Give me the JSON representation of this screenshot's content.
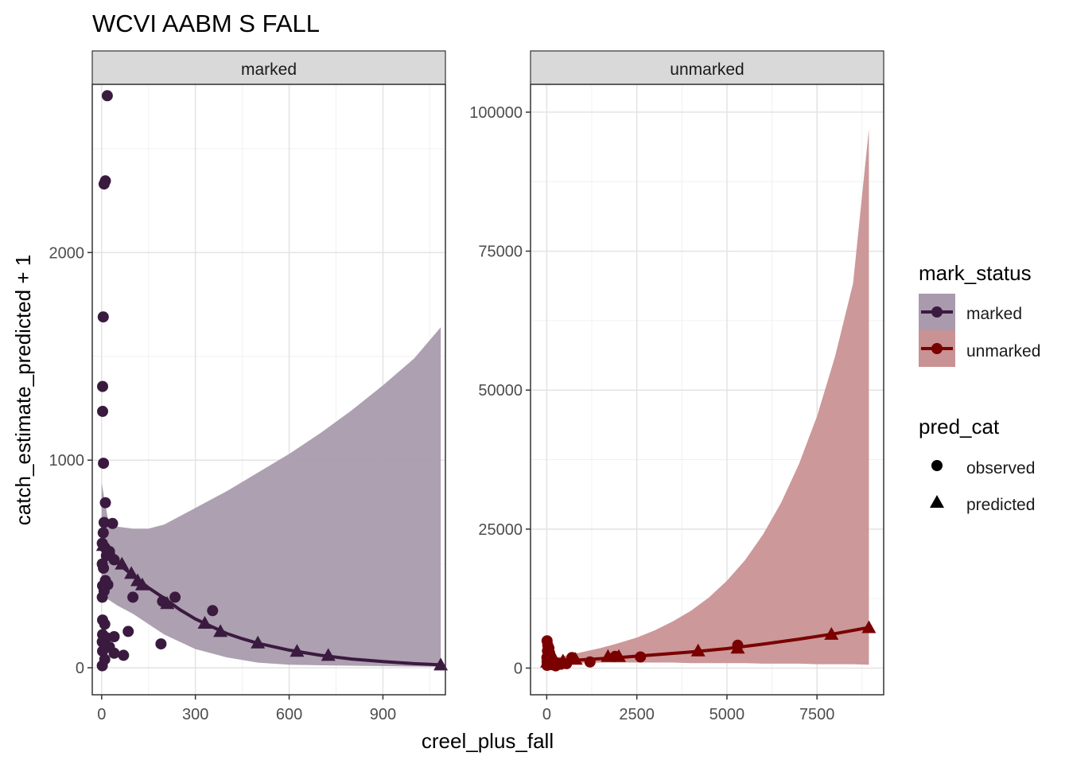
{
  "chart_data": {
    "type": "scatter",
    "title": "WCVI AABM S FALL",
    "xlabel": "creel_plus_fall",
    "ylabel": "catch_estimate_predicted + 1",
    "grid": true,
    "legend_position": "right",
    "legends": {
      "mark_status": {
        "title": "mark_status",
        "entries": [
          {
            "label": "marked",
            "color": "#3b1a40"
          },
          {
            "label": "unmarked",
            "color": "#7a0000"
          }
        ]
      },
      "pred_cat": {
        "title": "pred_cat",
        "entries": [
          {
            "label": "observed",
            "shape": "circle"
          },
          {
            "label": "predicted",
            "shape": "triangle"
          }
        ]
      }
    },
    "panels": [
      {
        "strip": "marked",
        "color": "#3b1a40",
        "ribbon_color": "#a99bad",
        "xlim": [
          -30,
          1100
        ],
        "ylim": [
          -130,
          2810
        ],
        "xticks": [
          0,
          300,
          600,
          900
        ],
        "yticks": [
          0,
          1000,
          2000
        ],
        "ribbon": {
          "x": [
            0,
            20,
            50,
            100,
            150,
            200,
            300,
            400,
            500,
            600,
            700,
            800,
            900,
            1000,
            1085
          ],
          "lower": [
            430,
            330,
            300,
            260,
            210,
            160,
            90,
            50,
            25,
            15,
            12,
            10,
            8,
            6,
            5
          ],
          "upper": [
            890,
            720,
            680,
            670,
            670,
            690,
            770,
            850,
            940,
            1030,
            1130,
            1240,
            1360,
            1490,
            1640
          ]
        },
        "line": {
          "x": [
            0,
            20,
            50,
            100,
            150,
            200,
            250,
            300,
            350,
            400,
            450,
            500,
            600,
            700,
            800,
            900,
            1000,
            1085
          ],
          "y": [
            590,
            555,
            505,
            445,
            385,
            335,
            280,
            235,
            200,
            165,
            140,
            118,
            85,
            60,
            42,
            30,
            20,
            14
          ]
        },
        "observed": [
          {
            "x": 18,
            "y": 2755
          },
          {
            "x": 12,
            "y": 2345
          },
          {
            "x": 8,
            "y": 2330
          },
          {
            "x": 5,
            "y": 1690
          },
          {
            "x": 3,
            "y": 1355
          },
          {
            "x": 3,
            "y": 1235
          },
          {
            "x": 6,
            "y": 985
          },
          {
            "x": 12,
            "y": 795
          },
          {
            "x": 8,
            "y": 700
          },
          {
            "x": 35,
            "y": 695
          },
          {
            "x": 5,
            "y": 650
          },
          {
            "x": 2,
            "y": 600
          },
          {
            "x": 10,
            "y": 580
          },
          {
            "x": 25,
            "y": 560
          },
          {
            "x": 15,
            "y": 540
          },
          {
            "x": 40,
            "y": 520
          },
          {
            "x": 2,
            "y": 500
          },
          {
            "x": 6,
            "y": 480
          },
          {
            "x": 12,
            "y": 420
          },
          {
            "x": 20,
            "y": 400
          },
          {
            "x": 3,
            "y": 395
          },
          {
            "x": 8,
            "y": 370
          },
          {
            "x": 2,
            "y": 340
          },
          {
            "x": 100,
            "y": 340
          },
          {
            "x": 235,
            "y": 340
          },
          {
            "x": 195,
            "y": 320
          },
          {
            "x": 355,
            "y": 275
          },
          {
            "x": 3,
            "y": 230
          },
          {
            "x": 10,
            "y": 210
          },
          {
            "x": 85,
            "y": 175
          },
          {
            "x": 3,
            "y": 160
          },
          {
            "x": 40,
            "y": 150
          },
          {
            "x": 15,
            "y": 145
          },
          {
            "x": 2,
            "y": 125
          },
          {
            "x": 190,
            "y": 115
          },
          {
            "x": 25,
            "y": 100
          },
          {
            "x": 3,
            "y": 80
          },
          {
            "x": 40,
            "y": 70
          },
          {
            "x": 70,
            "y": 60
          },
          {
            "x": 10,
            "y": 40
          },
          {
            "x": 2,
            "y": 10
          }
        ],
        "predicted": [
          {
            "x": 5,
            "y": 590
          },
          {
            "x": 30,
            "y": 550
          },
          {
            "x": 65,
            "y": 500
          },
          {
            "x": 95,
            "y": 455
          },
          {
            "x": 115,
            "y": 420
          },
          {
            "x": 130,
            "y": 400
          },
          {
            "x": 210,
            "y": 310
          },
          {
            "x": 330,
            "y": 215
          },
          {
            "x": 380,
            "y": 175
          },
          {
            "x": 500,
            "y": 120
          },
          {
            "x": 625,
            "y": 80
          },
          {
            "x": 725,
            "y": 60
          },
          {
            "x": 1085,
            "y": 14
          }
        ]
      },
      {
        "strip": "unmarked",
        "color": "#7a0000",
        "ribbon_color": "#c99294",
        "xlim": [
          -450,
          9350
        ],
        "ylim": [
          -4800,
          105000
        ],
        "xticks": [
          0,
          2500,
          5000,
          7500
        ],
        "yticks": [
          0,
          25000,
          50000,
          75000,
          100000
        ],
        "ribbon": {
          "x": [
            0,
            500,
            1000,
            1500,
            2000,
            2500,
            3000,
            3500,
            4000,
            4500,
            5000,
            5500,
            6000,
            6500,
            7000,
            7500,
            8000,
            8500,
            8940
          ],
          "lower": [
            600,
            800,
            900,
            1000,
            1000,
            1000,
            1000,
            1000,
            900,
            900,
            900,
            900,
            800,
            800,
            800,
            700,
            700,
            700,
            600
          ],
          "upper": [
            1500,
            2200,
            2900,
            3600,
            4500,
            5500,
            6800,
            8400,
            10300,
            12700,
            15700,
            19400,
            24000,
            29700,
            36700,
            45300,
            56000,
            69200,
            97000
          ]
        },
        "line": {
          "x": [
            0,
            500,
            1000,
            2000,
            3000,
            4000,
            5000,
            6000,
            7000,
            8000,
            8940
          ],
          "y": [
            1100,
            1300,
            1500,
            1900,
            2400,
            2900,
            3500,
            4300,
            5200,
            6200,
            7300
          ]
        },
        "observed": [
          {
            "x": 10,
            "y": 4900
          },
          {
            "x": 30,
            "y": 4100
          },
          {
            "x": 60,
            "y": 3600
          },
          {
            "x": 20,
            "y": 3100
          },
          {
            "x": 80,
            "y": 2700
          },
          {
            "x": 40,
            "y": 2300
          },
          {
            "x": 120,
            "y": 2000
          },
          {
            "x": 5,
            "y": 1900
          },
          {
            "x": 60,
            "y": 1700
          },
          {
            "x": 150,
            "y": 1600
          },
          {
            "x": 30,
            "y": 1400
          },
          {
            "x": 100,
            "y": 1300
          },
          {
            "x": 10,
            "y": 1200
          },
          {
            "x": 200,
            "y": 1100
          },
          {
            "x": 50,
            "y": 1000
          },
          {
            "x": 300,
            "y": 900
          },
          {
            "x": 80,
            "y": 800
          },
          {
            "x": 20,
            "y": 700
          },
          {
            "x": 150,
            "y": 600
          },
          {
            "x": 400,
            "y": 700
          },
          {
            "x": 1200,
            "y": 1100
          },
          {
            "x": 1900,
            "y": 2100
          },
          {
            "x": 2600,
            "y": 2000
          },
          {
            "x": 5300,
            "y": 4100
          },
          {
            "x": 550,
            "y": 800
          },
          {
            "x": 700,
            "y": 1900
          },
          {
            "x": 8,
            "y": 500
          },
          {
            "x": 250,
            "y": 400
          }
        ],
        "predicted": [
          {
            "x": 15,
            "y": 1100
          },
          {
            "x": 150,
            "y": 1200
          },
          {
            "x": 450,
            "y": 1300
          },
          {
            "x": 800,
            "y": 1600
          },
          {
            "x": 1700,
            "y": 2100
          },
          {
            "x": 2000,
            "y": 2100
          },
          {
            "x": 4200,
            "y": 3100
          },
          {
            "x": 5300,
            "y": 3600
          },
          {
            "x": 7900,
            "y": 6100
          },
          {
            "x": 8940,
            "y": 7300
          }
        ]
      }
    ]
  }
}
